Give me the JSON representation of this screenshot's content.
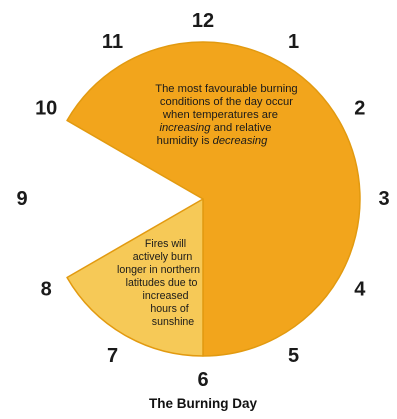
{
  "diagram": {
    "caption": "The Burning Day",
    "clock_numbers": [
      "12",
      "1",
      "2",
      "3",
      "4",
      "5",
      "6",
      "7",
      "8",
      "9",
      "10",
      "11"
    ],
    "sectors": {
      "main": {
        "from_hour": 10,
        "to_hour": 6,
        "color": "#f2a51c",
        "note": {
          "line1": "The most favourable burning",
          "line2": "conditions of the day occur",
          "line3": "when temperatures are",
          "line4_em": "increasing",
          "line4_rest": " and relative",
          "line5_start": "humidity is ",
          "line5_em": "decreasing"
        }
      },
      "minor": {
        "from_hour": 6,
        "to_hour": 8,
        "color": "#f6c957",
        "note": {
          "lines": [
            "Fires will",
            "actively burn",
            "longer in northern",
            "latitudes due to",
            "increased",
            "hours of",
            "sunshine"
          ]
        }
      }
    },
    "outline_color": "#e29a10"
  }
}
